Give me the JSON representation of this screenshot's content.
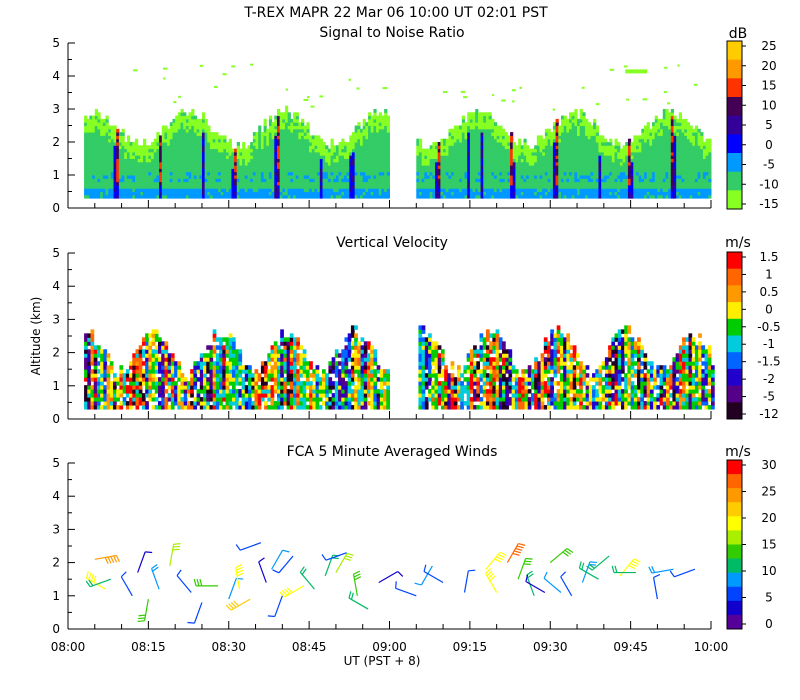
{
  "header": {
    "title": "T-REX   MAPR 22 Mar 06   10:00 UT   02:01   PST"
  },
  "axes": {
    "x_label": "UT  (PST + 8)",
    "y_label": "Altitude (km)",
    "x_ticks": [
      "08:00",
      "08:15",
      "08:30",
      "08:45",
      "09:00",
      "09:15",
      "09:30",
      "09:45",
      "10:00"
    ],
    "y_ticks": [
      "0",
      "1",
      "2",
      "3",
      "4",
      "5"
    ]
  },
  "chart_data": [
    {
      "type": "heatmap",
      "title": "Signal to Noise Ratio",
      "xlabel": "UT  (PST + 8)",
      "ylabel": "Altitude (km)",
      "xlim": [
        0,
        120
      ],
      "ylim": [
        0,
        5
      ],
      "data_gap_minutes": [
        60,
        65
      ],
      "colorbar": {
        "unit": "dB",
        "labels": [
          "25",
          "20",
          "15",
          "10",
          "5",
          "0",
          "-5",
          "-10",
          "-15"
        ],
        "colors": [
          "#ffcc00",
          "#ff9900",
          "#ff3300",
          "#440055",
          "#330099",
          "#0000ff",
          "#0099ff",
          "#33cc66",
          "#88ff22"
        ]
      }
    },
    {
      "type": "heatmap",
      "title": "Vertical Velocity",
      "xlabel": "UT  (PST + 8)",
      "ylabel": "Altitude (km)",
      "xlim": [
        0,
        120
      ],
      "ylim": [
        0,
        5
      ],
      "data_gap_minutes": [
        60,
        65
      ],
      "colorbar": {
        "unit": "m/s",
        "labels": [
          "1.5",
          "1",
          "0.5",
          "0",
          "-0.5",
          "-1",
          "-1.5",
          "-2",
          "-5",
          "-12"
        ],
        "colors": [
          "#ff0000",
          "#ff6600",
          "#ff9900",
          "#ffee00",
          "#00cc00",
          "#00ccdd",
          "#0066ff",
          "#2200cc",
          "#550088",
          "#220022"
        ]
      }
    },
    {
      "type": "scatter",
      "title": "FCA 5 Minute Averaged Winds",
      "xlabel": "UT  (PST + 8)",
      "ylabel": "Altitude (km)",
      "xlim": [
        0,
        120
      ],
      "ylim": [
        0,
        5
      ],
      "colorbar": {
        "unit": "m/s",
        "labels": [
          "30",
          "25",
          "20",
          "15",
          "10",
          "5",
          "0"
        ],
        "colors": [
          "#ff0000",
          "#ff6600",
          "#ff9900",
          "#ffcc00",
          "#ffff00",
          "#aaee00",
          "#33cc00",
          "#00bb66",
          "#0099ff",
          "#0044ff",
          "#1100cc",
          "#550099"
        ]
      },
      "barbs": [
        {
          "t": 5,
          "alt": 2.1,
          "dir": 80,
          "spd": 24
        },
        {
          "t": 7,
          "alt": 1.2,
          "dir": 300,
          "spd": 18
        },
        {
          "t": 8,
          "alt": 1.5,
          "dir": 250,
          "spd": 12
        },
        {
          "t": 12,
          "alt": 1.0,
          "dir": 330,
          "spd": 6
        },
        {
          "t": 13,
          "alt": 1.7,
          "dir": 20,
          "spd": 4
        },
        {
          "t": 15,
          "alt": 0.9,
          "dir": 190,
          "spd": 14
        },
        {
          "t": 17,
          "alt": 1.2,
          "dir": 340,
          "spd": 9
        },
        {
          "t": 19,
          "alt": 1.9,
          "dir": 10,
          "spd": 16
        },
        {
          "t": 23,
          "alt": 1.1,
          "dir": 320,
          "spd": 6
        },
        {
          "t": 25,
          "alt": 0.8,
          "dir": 200,
          "spd": 5
        },
        {
          "t": 28,
          "alt": 1.3,
          "dir": 270,
          "spd": 15
        },
        {
          "t": 30,
          "alt": 0.9,
          "dir": 20,
          "spd": 7
        },
        {
          "t": 32,
          "alt": 1.2,
          "dir": 350,
          "spd": 20
        },
        {
          "t": 34,
          "alt": 0.9,
          "dir": 240,
          "spd": 22
        },
        {
          "t": 36,
          "alt": 2.6,
          "dir": 250,
          "spd": 6
        },
        {
          "t": 37,
          "alt": 1.4,
          "dir": 340,
          "spd": 4
        },
        {
          "t": 38,
          "alt": 1.8,
          "dir": 30,
          "spd": 7
        },
        {
          "t": 40,
          "alt": 1.0,
          "dir": 200,
          "spd": 5
        },
        {
          "t": 42,
          "alt": 2.2,
          "dir": 220,
          "spd": 6
        },
        {
          "t": 44,
          "alt": 1.3,
          "dir": 240,
          "spd": 18
        },
        {
          "t": 46,
          "alt": 1.2,
          "dir": 320,
          "spd": 10
        },
        {
          "t": 48,
          "alt": 1.6,
          "dir": 20,
          "spd": 12
        },
        {
          "t": 50,
          "alt": 1.7,
          "dir": 30,
          "spd": 16
        },
        {
          "t": 52,
          "alt": 2.3,
          "dir": 250,
          "spd": 6
        },
        {
          "t": 54,
          "alt": 1.0,
          "dir": 350,
          "spd": 14
        },
        {
          "t": 56,
          "alt": 0.6,
          "dir": 300,
          "spd": 11
        },
        {
          "t": 58,
          "alt": 1.4,
          "dir": 60,
          "spd": 4
        },
        {
          "t": 65,
          "alt": 1.0,
          "dir": 290,
          "spd": 5
        },
        {
          "t": 68,
          "alt": 1.9,
          "dir": 210,
          "spd": 7
        },
        {
          "t": 70,
          "alt": 1.4,
          "dir": 300,
          "spd": 6
        },
        {
          "t": 74,
          "alt": 1.1,
          "dir": 10,
          "spd": 5
        },
        {
          "t": 78,
          "alt": 1.8,
          "dir": 40,
          "spd": 18
        },
        {
          "t": 80,
          "alt": 1.1,
          "dir": 330,
          "spd": 19
        },
        {
          "t": 82,
          "alt": 2.0,
          "dir": 30,
          "spd": 26
        },
        {
          "t": 84,
          "alt": 1.5,
          "dir": 20,
          "spd": 13
        },
        {
          "t": 87,
          "alt": 1.0,
          "dir": 340,
          "spd": 10
        },
        {
          "t": 89,
          "alt": 1.1,
          "dir": 300,
          "spd": 4
        },
        {
          "t": 90,
          "alt": 2.0,
          "dir": 50,
          "spd": 14
        },
        {
          "t": 92,
          "alt": 1.1,
          "dir": 310,
          "spd": 7
        },
        {
          "t": 94,
          "alt": 1.0,
          "dir": 330,
          "spd": 5
        },
        {
          "t": 96,
          "alt": 1.4,
          "dir": 20,
          "spd": 9
        },
        {
          "t": 99,
          "alt": 1.5,
          "dir": 300,
          "spd": 12
        },
        {
          "t": 101,
          "alt": 2.2,
          "dir": 230,
          "spd": 11
        },
        {
          "t": 103,
          "alt": 1.6,
          "dir": 40,
          "spd": 20
        },
        {
          "t": 106,
          "alt": 1.7,
          "dir": 270,
          "spd": 10
        },
        {
          "t": 110,
          "alt": 0.9,
          "dir": 350,
          "spd": 5
        },
        {
          "t": 113,
          "alt": 1.8,
          "dir": 260,
          "spd": 9
        },
        {
          "t": 117,
          "alt": 1.8,
          "dir": 250,
          "spd": 6
        }
      ]
    }
  ]
}
